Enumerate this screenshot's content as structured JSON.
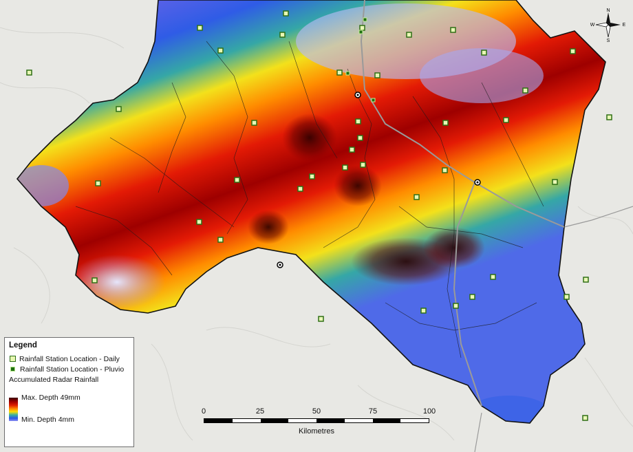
{
  "legend": {
    "title": "Legend",
    "daily_label": "Rainfall Station Location - Daily",
    "pluvio_label": "Rainfall Station Location - Pluvio",
    "radar_label": "Accumulated Radar Rainfall",
    "max_label": "Max. Depth 49mm",
    "min_label": "Min. Depth 4mm"
  },
  "scale_bar": {
    "ticks": [
      "0",
      "25",
      "50",
      "75",
      "100"
    ],
    "units": "Kilometres"
  },
  "north_arrow": {
    "n": "N",
    "s": "S",
    "e": "E",
    "w": "W"
  },
  "colors": {
    "max_depth": "#3b0000",
    "high": "#e02000",
    "mid": "#ffe000",
    "low": "#3ab0a0",
    "min_depth": "#8c8cf0"
  }
}
